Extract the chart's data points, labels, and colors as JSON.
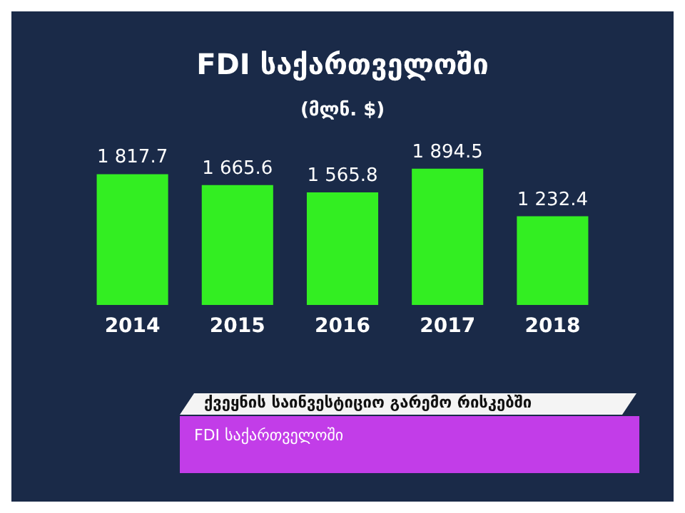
{
  "chart_data": {
    "type": "bar",
    "title": "FDI საქართველოში",
    "subtitle": "(მლნ. $)",
    "categories": [
      "2014",
      "2015",
      "2016",
      "2017",
      "2018"
    ],
    "values": [
      1817.7,
      1665.6,
      1565.8,
      1894.5,
      1232.4
    ],
    "value_labels": [
      "1 817.7",
      "1 665.6",
      "1 565.8",
      "1 894.5",
      "1 232.4"
    ],
    "color": "#33ee22",
    "annotations": [
      "ქვეყნის საინვესტიციო გარემო რისკებში",
      "FDI საქართველოში"
    ]
  }
}
